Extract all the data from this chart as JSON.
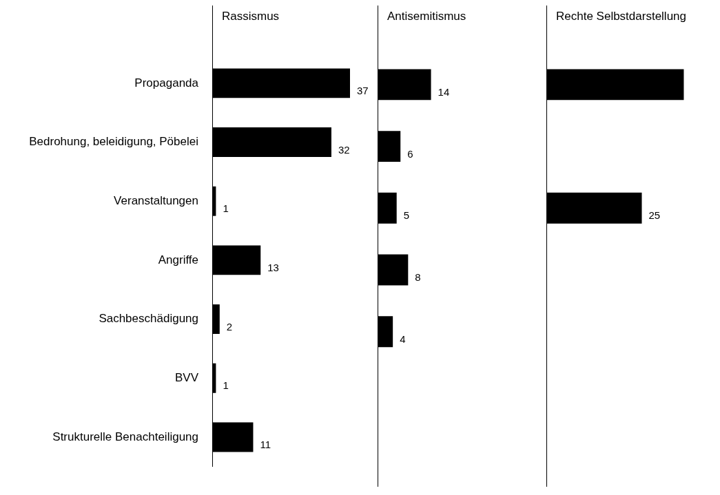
{
  "chart_data": [
    {
      "type": "bar",
      "orientation": "horizontal",
      "title": "Rassismus",
      "categories": [
        "Propaganda",
        "Bedrohung, beleidigung, Pöbelei",
        "Veranstaltungen",
        "Angriffe",
        "Sachbeschädigung",
        "BVV",
        "Strukturelle Benachteiligung"
      ],
      "values": [
        37,
        32,
        1,
        13,
        2,
        1,
        11
      ],
      "color": "#000000",
      "data_labels": true,
      "grid": false,
      "legend": false,
      "tick_labels": "y"
    },
    {
      "type": "bar",
      "orientation": "horizontal",
      "title": "Antisemitismus",
      "categories": [
        null,
        null,
        null,
        null,
        null,
        null,
        null
      ],
      "values": [
        14,
        6,
        5,
        8,
        4,
        null,
        null
      ],
      "color": "#000000",
      "data_labels": true,
      "grid": false,
      "legend": false,
      "tick_labels": false
    },
    {
      "type": "bar",
      "orientation": "horizontal",
      "title": "Rechte Selbstdarstellung",
      "categories": [
        null,
        null,
        null,
        null,
        null,
        null,
        null
      ],
      "values": [
        36,
        null,
        25,
        null,
        null,
        null,
        null
      ],
      "value_labels": [
        null,
        null,
        "25",
        null,
        null,
        null,
        null
      ],
      "color": "#000000",
      "grid": false,
      "legend": false,
      "tick_labels": false
    }
  ]
}
